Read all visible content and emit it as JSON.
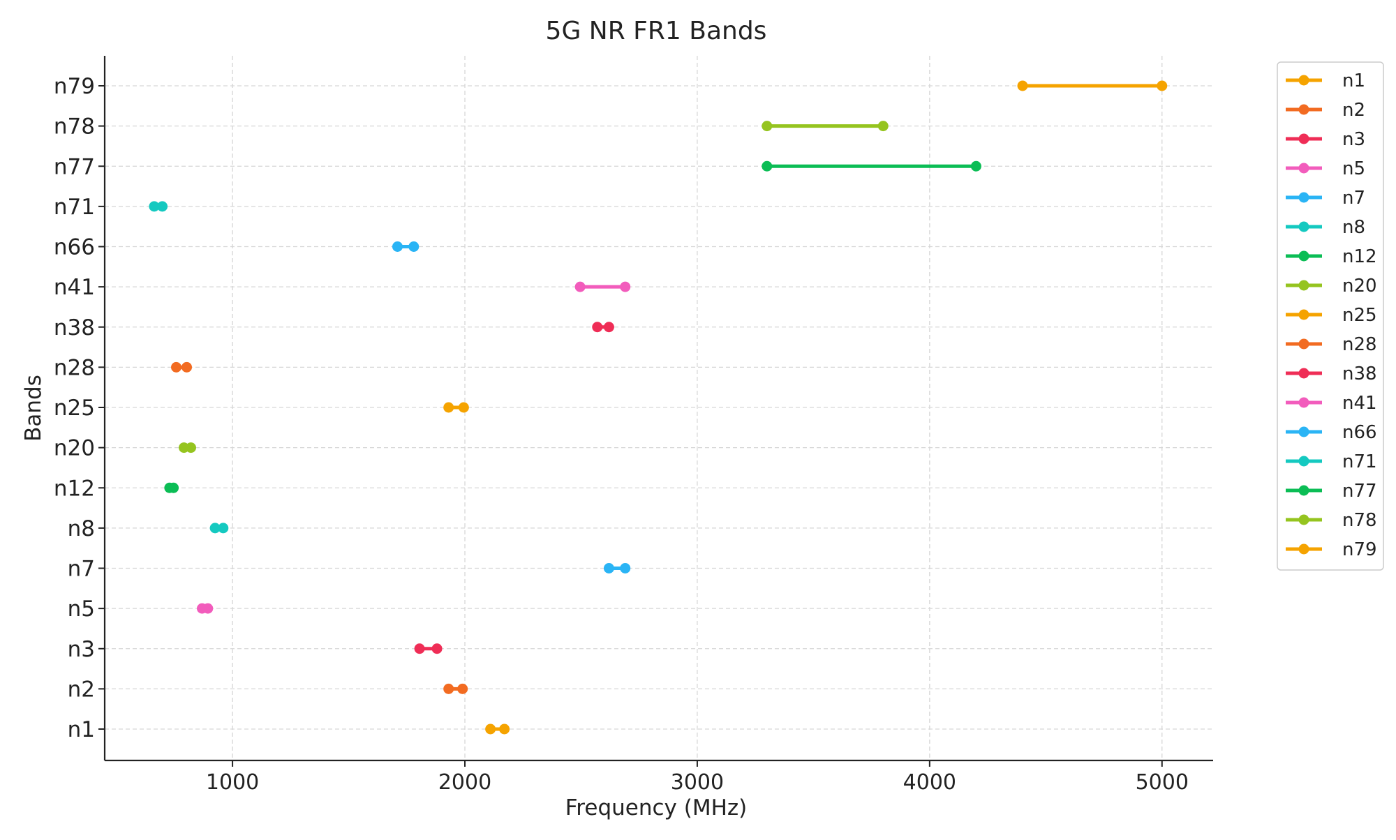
{
  "chart_data": {
    "type": "line",
    "title": "5G NR FR1 Bands",
    "xlabel": "Frequency (MHz)",
    "ylabel": "Bands",
    "xlim": [
      450,
      5220
    ],
    "xticks": [
      1000,
      2000,
      3000,
      4000,
      5000
    ],
    "grid": true,
    "legend_position": "outside-right",
    "series": [
      {
        "name": "n1",
        "color": "#f5a300",
        "values": [
          2110,
          2170
        ]
      },
      {
        "name": "n2",
        "color": "#f26b21",
        "values": [
          1930,
          1990
        ]
      },
      {
        "name": "n3",
        "color": "#ef2d56",
        "values": [
          1805,
          1880
        ]
      },
      {
        "name": "n5",
        "color": "#f25cbc",
        "values": [
          869,
          894
        ]
      },
      {
        "name": "n7",
        "color": "#2ab4f5",
        "values": [
          2620,
          2690
        ]
      },
      {
        "name": "n8",
        "color": "#14c9c0",
        "values": [
          925,
          960
        ]
      },
      {
        "name": "n12",
        "color": "#0bbd55",
        "values": [
          729,
          746
        ]
      },
      {
        "name": "n20",
        "color": "#95c41f",
        "values": [
          791,
          821
        ]
      },
      {
        "name": "n25",
        "color": "#f5a300",
        "values": [
          1930,
          1995
        ]
      },
      {
        "name": "n28",
        "color": "#f26b21",
        "values": [
          758,
          803
        ]
      },
      {
        "name": "n38",
        "color": "#ef2d56",
        "values": [
          2570,
          2620
        ]
      },
      {
        "name": "n41",
        "color": "#f25cbc",
        "values": [
          2496,
          2690
        ]
      },
      {
        "name": "n66",
        "color": "#2ab4f5",
        "values": [
          1710,
          1780
        ]
      },
      {
        "name": "n71",
        "color": "#14c9c0",
        "values": [
          663,
          698
        ]
      },
      {
        "name": "n77",
        "color": "#0bbd55",
        "values": [
          3300,
          4200
        ]
      },
      {
        "name": "n78",
        "color": "#95c41f",
        "values": [
          3300,
          3800
        ]
      },
      {
        "name": "n79",
        "color": "#f5a300",
        "values": [
          4400,
          5000
        ]
      }
    ]
  }
}
